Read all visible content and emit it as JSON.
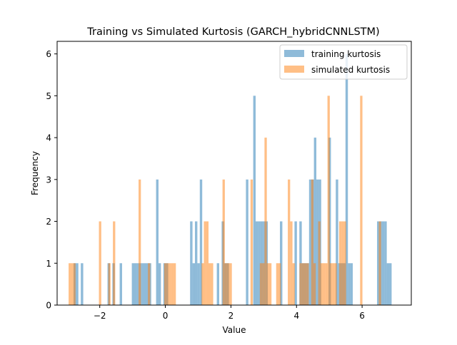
{
  "chart_data": {
    "type": "histogram",
    "title": "Training vs Simulated Kurtosis (GARCH_hybridCNNLSTM)",
    "xlabel": "Value",
    "ylabel": "Frequency",
    "xlim": [
      -3.3,
      7.5
    ],
    "ylim": [
      0,
      6.3
    ],
    "xticks": [
      -2,
      0,
      2,
      4,
      6
    ],
    "xtick_labels": [
      "−2",
      "0",
      "2",
      "4",
      "6"
    ],
    "yticks": [
      0,
      1,
      2,
      3,
      4,
      5,
      6
    ],
    "grid": false,
    "legend_position": "top-right",
    "series": [
      {
        "name": "training kurtosis",
        "color": "#1f77b4",
        "alpha": 0.5,
        "bin_edges": [
          -2.8,
          6.9
        ],
        "counts": [
          1,
          1,
          0,
          1,
          0,
          0,
          0,
          0,
          0,
          0,
          0,
          0,
          0,
          0,
          1,
          0,
          1,
          0,
          0,
          1,
          0,
          0,
          0,
          0,
          1,
          1,
          1,
          1,
          1,
          1,
          1,
          1,
          0,
          0,
          3,
          1,
          0,
          1,
          1,
          0,
          0,
          0,
          0,
          0,
          0,
          0,
          0,
          0,
          2,
          1,
          2,
          1,
          3,
          0,
          0,
          0,
          0,
          0,
          0,
          1,
          0,
          2,
          1,
          1,
          0,
          0,
          0,
          0,
          0,
          0,
          0,
          3,
          0,
          0,
          5,
          2,
          2,
          2,
          2,
          2,
          0,
          0,
          0,
          0,
          0,
          2,
          0,
          0,
          0,
          0,
          0,
          2,
          0,
          2,
          1,
          1,
          1,
          3,
          3,
          4,
          3,
          3,
          0,
          0,
          0,
          4,
          0,
          0,
          3,
          1,
          1,
          1,
          6,
          1,
          1,
          0,
          0,
          0,
          0,
          0,
          0,
          0,
          0,
          0,
          0,
          2,
          2,
          2,
          2,
          1,
          1
        ]
      },
      {
        "name": "simulated kurtosis",
        "color": "#ff7f0e",
        "alpha": 0.5,
        "bin_edges": [
          -2.95,
          6.65
        ],
        "counts": [
          1,
          1,
          1,
          0,
          0,
          0,
          0,
          0,
          0,
          0,
          0,
          0,
          0,
          2,
          0,
          0,
          0,
          1,
          0,
          2,
          0,
          0,
          0,
          0,
          0,
          0,
          0,
          0,
          0,
          0,
          3,
          0,
          0,
          0,
          1,
          0,
          0,
          0,
          0,
          0,
          0,
          1,
          1,
          1,
          1,
          1,
          0,
          0,
          0,
          0,
          0,
          0,
          0,
          0,
          0,
          0,
          0,
          1,
          2,
          2,
          1,
          1,
          0,
          0,
          0,
          0,
          3,
          1,
          1,
          1,
          0,
          0,
          0,
          0,
          0,
          0,
          0,
          0,
          3,
          0,
          0,
          0,
          1,
          1,
          4,
          1,
          1,
          0,
          0,
          1,
          1,
          0,
          0,
          0,
          3,
          2,
          1,
          0,
          0,
          1,
          1,
          1,
          1,
          0,
          3,
          1,
          0,
          2,
          1,
          1,
          1,
          5,
          1,
          1,
          1,
          0,
          2,
          2,
          2,
          0,
          0,
          0,
          0,
          0,
          0,
          5,
          0,
          0,
          0,
          0,
          0,
          0,
          0,
          2,
          0
        ]
      }
    ]
  }
}
